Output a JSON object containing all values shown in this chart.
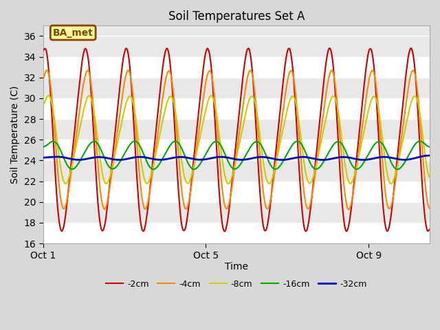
{
  "title": "Soil Temperatures Set A",
  "xlabel": "Time",
  "ylabel": "Soil Temperature (C)",
  "ylim": [
    16,
    37
  ],
  "xlim_days": [
    0,
    9.5
  ],
  "xticks_days": [
    0,
    4,
    8
  ],
  "xtick_labels": [
    "Oct 1",
    "Oct 5",
    "Oct 9"
  ],
  "legend_labels": [
    "-2cm",
    "-4cm",
    "-8cm",
    "-16cm",
    "-32cm"
  ],
  "line_colors": [
    "#cc0000",
    "#ff8800",
    "#cccc00",
    "#00aa00",
    "#0000cc"
  ],
  "line_widths": [
    1.5,
    1.5,
    1.5,
    1.5,
    2.0
  ],
  "fig_bg_color": "#d8d8d8",
  "plot_bg_color": "#e8e8e8",
  "annotation_text": "BA_met",
  "annotation_bg": "#ffff99",
  "annotation_border": "#884400",
  "annotation_text_color": "#884400",
  "mean_temps": [
    26.0,
    26.0,
    26.0,
    24.5,
    24.2
  ],
  "amplitudes": [
    8.5,
    6.5,
    4.2,
    1.75,
    0.42
  ],
  "phase_lags_hours": [
    0.0,
    1.2,
    2.2,
    5.5,
    9.0
  ],
  "num_points": 2000,
  "duration_days": 9.5,
  "smoothing_sigmas": [
    3,
    5,
    8,
    25,
    50
  ],
  "band_colors": [
    "#f0f0f0",
    "#e0e0e0"
  ]
}
